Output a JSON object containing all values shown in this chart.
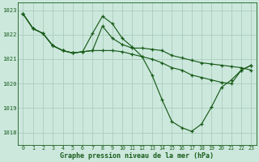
{
  "title": "Graphe pression niveau de la mer (hPa)",
  "bg_color": "#cce8dd",
  "grid_color": "#aaccbb",
  "line_color": "#1a5c1a",
  "marker": "+",
  "xlim": [
    -0.5,
    23.5
  ],
  "ylim": [
    1017.5,
    1023.3
  ],
  "yticks": [
    1018,
    1019,
    1020,
    1021,
    1022,
    1023
  ],
  "xticks": [
    0,
    1,
    2,
    3,
    4,
    5,
    6,
    7,
    8,
    9,
    10,
    11,
    12,
    13,
    14,
    15,
    16,
    17,
    18,
    19,
    20,
    21,
    22,
    23
  ],
  "series": [
    {
      "x": [
        0,
        1,
        2,
        3,
        4,
        5,
        6,
        7,
        8,
        9,
        10,
        11,
        12,
        13,
        14,
        15,
        16,
        17,
        18,
        19,
        20,
        21,
        22,
        23
      ],
      "y": [
        1022.85,
        1022.25,
        1022.05,
        1021.55,
        1021.35,
        1021.25,
        1021.3,
        1021.35,
        1022.35,
        1021.85,
        1021.6,
        1021.45,
        1021.45,
        1021.4,
        1021.35,
        1021.15,
        1021.05,
        1020.95,
        1020.85,
        1020.8,
        1020.75,
        1020.7,
        1020.65,
        1020.55
      ]
    },
    {
      "x": [
        0,
        1,
        2,
        3,
        4,
        5,
        6,
        7,
        8,
        9,
        10,
        11,
        12,
        13,
        14,
        15,
        16,
        17,
        18,
        19,
        20,
        21,
        22,
        23
      ],
      "y": [
        1022.85,
        1022.25,
        1022.05,
        1021.55,
        1021.35,
        1021.25,
        1021.3,
        1022.05,
        1022.75,
        1022.45,
        1021.85,
        1021.5,
        1021.1,
        1020.35,
        1019.35,
        1018.45,
        1018.2,
        1018.05,
        1018.35,
        1019.05,
        1019.85,
        1020.15,
        1020.55,
        1020.75
      ]
    },
    {
      "x": [
        0,
        1,
        2,
        3,
        4,
        5,
        6,
        7,
        8,
        9,
        10,
        11,
        12,
        13,
        14,
        15,
        16,
        17,
        18,
        19,
        20,
        21,
        22,
        23
      ],
      "y": [
        1022.85,
        1022.25,
        1022.05,
        1021.55,
        1021.35,
        1021.25,
        1021.3,
        1021.35,
        1021.35,
        1021.35,
        1021.3,
        1021.2,
        1021.1,
        1021.0,
        1020.85,
        1020.65,
        1020.55,
        1020.35,
        1020.25,
        1020.15,
        1020.05,
        1020.0,
        1020.55,
        1020.75
      ]
    }
  ],
  "figsize": [
    3.2,
    2.0
  ],
  "dpi": 100
}
